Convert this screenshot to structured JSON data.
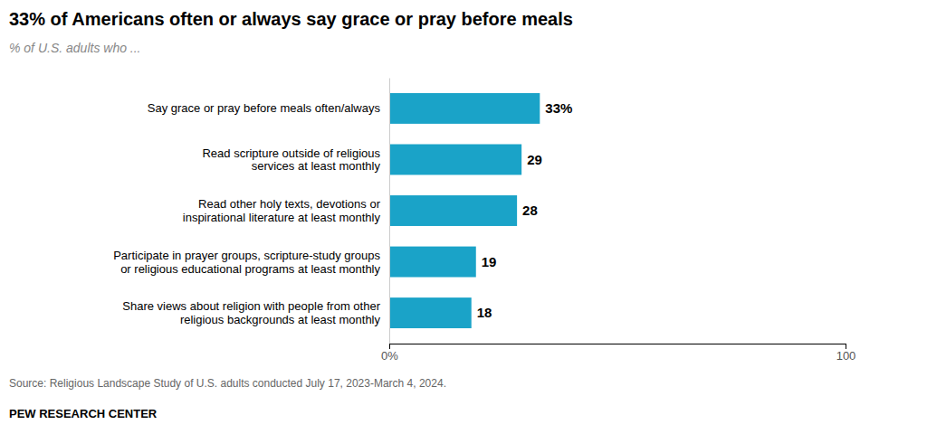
{
  "chart_data": {
    "type": "bar",
    "orientation": "horizontal",
    "title": "33% of Americans often or always say grace or pray before meals",
    "subtitle": "% of U.S. adults who ...",
    "categories": [
      "Say grace or pray before meals often/always",
      "Read scripture outside of religious\nservices at least monthly",
      "Read other holy texts, devotions or\ninspirational literature at least monthly",
      "Participate in prayer groups, scripture-study groups\nor religious educational programs at least monthly",
      "Share views about religion with people from other\nreligious backgrounds at least monthly"
    ],
    "values": [
      33,
      29,
      28,
      19,
      18
    ],
    "value_labels": [
      "33%",
      "29",
      "28",
      "19",
      "18"
    ],
    "data_labels": true,
    "color": "#1aa3c8",
    "xlim": [
      0,
      100
    ],
    "xticks": [
      {
        "value": 0,
        "label": "0%"
      },
      100
    ],
    "grid": false,
    "annotations": [
      "Source: Religious Landscape Study of U.S. adults conducted July 17, 2023-March 4, 2024.",
      "PEW RESEARCH CENTER"
    ]
  }
}
